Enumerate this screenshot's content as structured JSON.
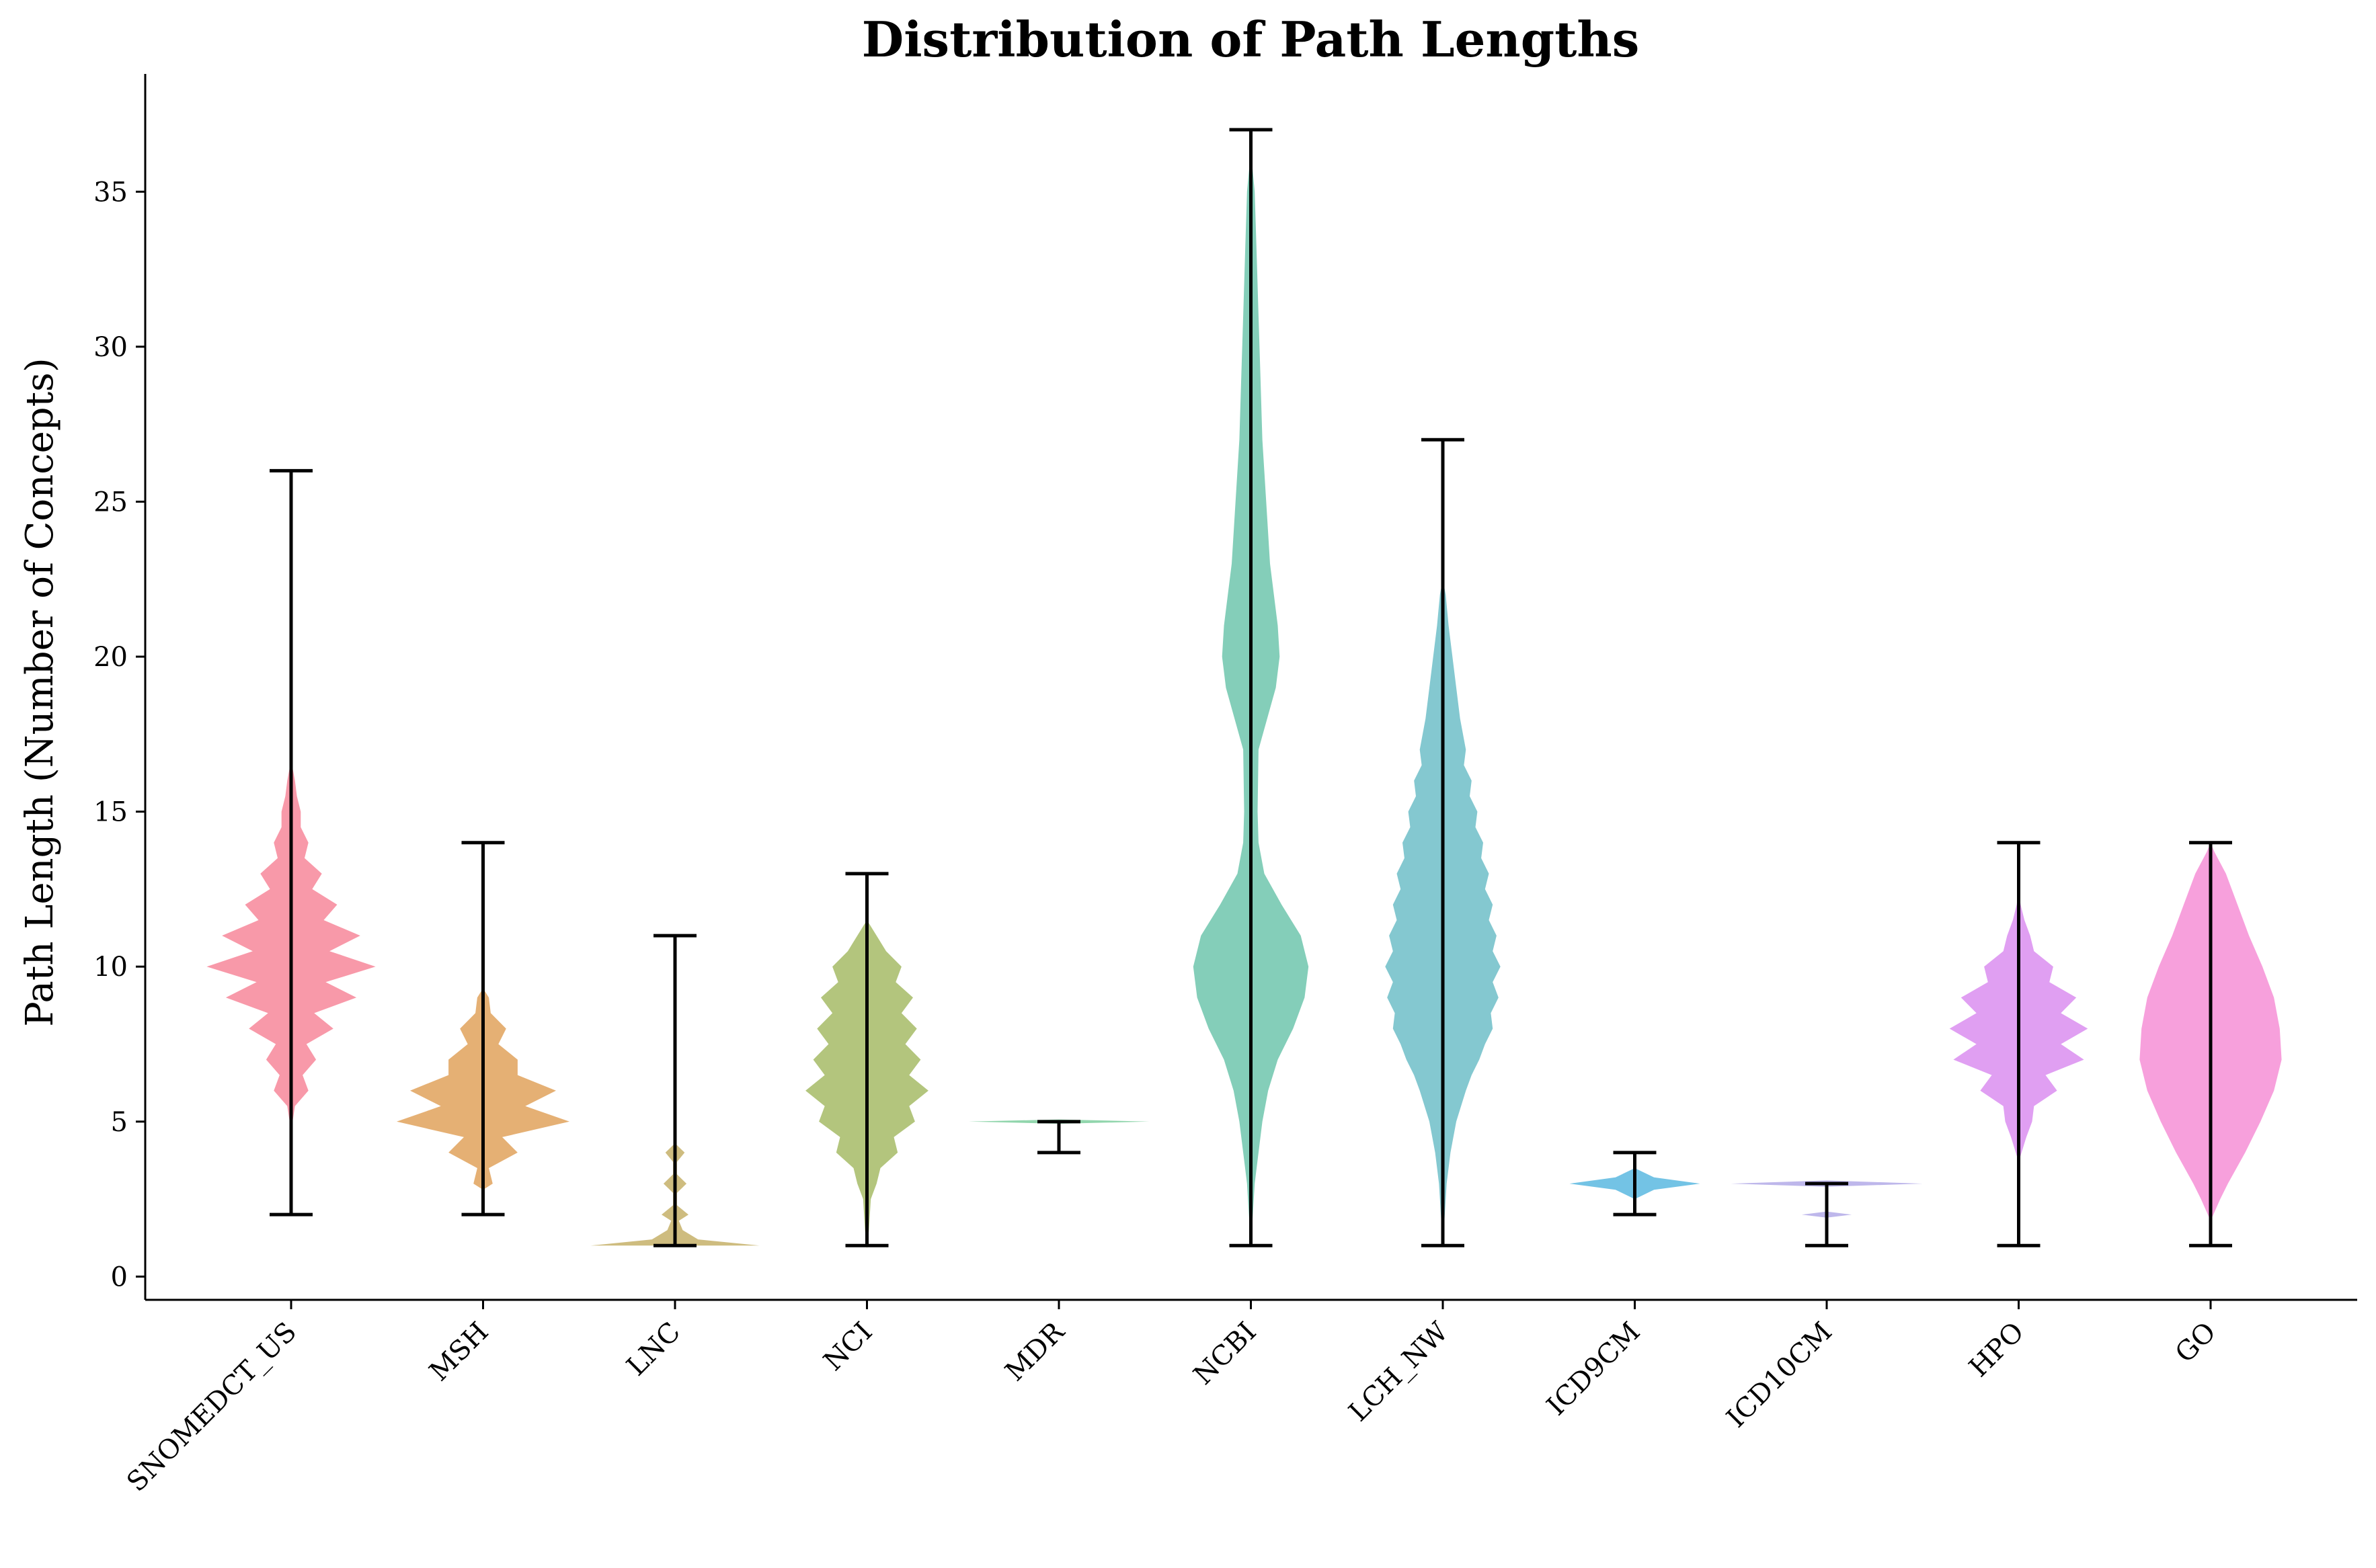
{
  "chart_data": {
    "type": "violin",
    "title": "Distribution of Path Lengths",
    "xlabel": "",
    "ylabel": "Path Length (Number of Concepts)",
    "ylim": [
      -0.75,
      38.8
    ],
    "yticks": [
      0,
      5,
      10,
      15,
      20,
      25,
      30,
      35
    ],
    "grid": false,
    "categories": [
      "SNOMEDCT_US",
      "MSH",
      "LNC",
      "NCI",
      "MDR",
      "NCBI",
      "LCH_NW",
      "ICD9CM",
      "ICD10CM",
      "HPO",
      "GO"
    ],
    "series": [
      {
        "name": "SNOMEDCT_US",
        "color": "#f7879a",
        "min": 2,
        "max": 26,
        "density": [
          [
            4.7,
            0
          ],
          [
            5.5,
            0.02
          ],
          [
            6,
            0.09
          ],
          [
            6.5,
            0.06
          ],
          [
            7,
            0.13
          ],
          [
            7.5,
            0.08
          ],
          [
            8,
            0.22
          ],
          [
            8.5,
            0.12
          ],
          [
            9,
            0.34
          ],
          [
            9.5,
            0.18
          ],
          [
            10,
            0.44
          ],
          [
            10.5,
            0.2
          ],
          [
            11,
            0.36
          ],
          [
            11.5,
            0.17
          ],
          [
            12,
            0.24
          ],
          [
            12.5,
            0.11
          ],
          [
            13,
            0.16
          ],
          [
            13.5,
            0.07
          ],
          [
            14,
            0.09
          ],
          [
            14.5,
            0.05
          ],
          [
            15,
            0.05
          ],
          [
            15.5,
            0.03
          ],
          [
            16,
            0.02
          ],
          [
            16.5,
            0.005
          ],
          [
            17,
            0
          ]
        ]
      },
      {
        "name": "MSH",
        "color": "#e0a25c",
        "min": 2,
        "max": 14,
        "density": [
          [
            2.8,
            0
          ],
          [
            3,
            0.05
          ],
          [
            3.5,
            0.03
          ],
          [
            4,
            0.18
          ],
          [
            4.5,
            0.1
          ],
          [
            5,
            0.45
          ],
          [
            5.5,
            0.22
          ],
          [
            6,
            0.38
          ],
          [
            6.5,
            0.18
          ],
          [
            7,
            0.18
          ],
          [
            7.5,
            0.08
          ],
          [
            8,
            0.12
          ],
          [
            8.5,
            0.04
          ],
          [
            9,
            0.03
          ],
          [
            9.3,
            0
          ]
        ]
      },
      {
        "name": "LNC",
        "color": "#c5b068",
        "min": 1,
        "max": 11,
        "density": [
          [
            1,
            0.44
          ],
          [
            1.2,
            0.12
          ],
          [
            1.5,
            0.04
          ],
          [
            1.8,
            0.02
          ],
          [
            2,
            0.07
          ],
          [
            2.3,
            0.01
          ],
          [
            2.7,
            0.01
          ],
          [
            3,
            0.06
          ],
          [
            3.3,
            0.01
          ],
          [
            3.7,
            0.01
          ],
          [
            4,
            0.05
          ],
          [
            4.3,
            0
          ]
        ]
      },
      {
        "name": "NCI",
        "color": "#a6bb66",
        "min": 1,
        "max": 13,
        "density": [
          [
            0.9,
            0
          ],
          [
            1.5,
            0.01
          ],
          [
            2.5,
            0.02
          ],
          [
            3,
            0.05
          ],
          [
            3.5,
            0.07
          ],
          [
            4,
            0.16
          ],
          [
            4.5,
            0.14
          ],
          [
            5,
            0.25
          ],
          [
            5.5,
            0.22
          ],
          [
            6,
            0.32
          ],
          [
            6.5,
            0.22
          ],
          [
            7,
            0.28
          ],
          [
            7.5,
            0.2
          ],
          [
            8,
            0.26
          ],
          [
            8.5,
            0.18
          ],
          [
            9,
            0.24
          ],
          [
            9.5,
            0.15
          ],
          [
            10,
            0.18
          ],
          [
            10.5,
            0.1
          ],
          [
            11,
            0.05
          ],
          [
            11.5,
            0
          ]
        ]
      },
      {
        "name": "MDR",
        "color": "#7fcf9f",
        "min": 4,
        "max": 5,
        "density": [
          [
            4.93,
            0
          ],
          [
            5,
            0.47
          ],
          [
            5.07,
            0
          ]
        ]
      },
      {
        "name": "NCBI",
        "color": "#6ec5ad",
        "min": 1,
        "max": 37,
        "density": [
          [
            1,
            0
          ],
          [
            2,
            0.01
          ],
          [
            3,
            0.02
          ],
          [
            4,
            0.04
          ],
          [
            5,
            0.06
          ],
          [
            6,
            0.09
          ],
          [
            7,
            0.14
          ],
          [
            8,
            0.22
          ],
          [
            9,
            0.28
          ],
          [
            10,
            0.3
          ],
          [
            11,
            0.26
          ],
          [
            12,
            0.16
          ],
          [
            13,
            0.07
          ],
          [
            14,
            0.04
          ],
          [
            15,
            0.035
          ],
          [
            17,
            0.04
          ],
          [
            19,
            0.13
          ],
          [
            20,
            0.15
          ],
          [
            21,
            0.14
          ],
          [
            23,
            0.1
          ],
          [
            25,
            0.08
          ],
          [
            27,
            0.06
          ],
          [
            29,
            0.05
          ],
          [
            31,
            0.04
          ],
          [
            33,
            0.03
          ],
          [
            35,
            0.02
          ],
          [
            36,
            0.005
          ],
          [
            37,
            0
          ]
        ]
      },
      {
        "name": "LCH_NW",
        "color": "#6fbec8",
        "min": 1,
        "max": 27,
        "density": [
          [
            1,
            0
          ],
          [
            2,
            0.01
          ],
          [
            3,
            0.02
          ],
          [
            4,
            0.04
          ],
          [
            5,
            0.07
          ],
          [
            6,
            0.12
          ],
          [
            6.5,
            0.15
          ],
          [
            7,
            0.19
          ],
          [
            7.5,
            0.22
          ],
          [
            8,
            0.26
          ],
          [
            8.5,
            0.25
          ],
          [
            9,
            0.29
          ],
          [
            9.5,
            0.26
          ],
          [
            10,
            0.3
          ],
          [
            10.5,
            0.26
          ],
          [
            11,
            0.28
          ],
          [
            11.5,
            0.24
          ],
          [
            12,
            0.26
          ],
          [
            12.5,
            0.22
          ],
          [
            13,
            0.24
          ],
          [
            13.5,
            0.2
          ],
          [
            14,
            0.21
          ],
          [
            14.5,
            0.17
          ],
          [
            15,
            0.18
          ],
          [
            15.5,
            0.14
          ],
          [
            16,
            0.15
          ],
          [
            16.5,
            0.11
          ],
          [
            17,
            0.12
          ],
          [
            18,
            0.09
          ],
          [
            19,
            0.07
          ],
          [
            20,
            0.05
          ],
          [
            21,
            0.03
          ],
          [
            22,
            0.015
          ],
          [
            22.5,
            0
          ]
        ]
      },
      {
        "name": "ICD9CM",
        "color": "#5ab8e0",
        "min": 2,
        "max": 4,
        "density": [
          [
            2.5,
            0
          ],
          [
            2.8,
            0.1
          ],
          [
            3,
            0.34
          ],
          [
            3.2,
            0.1
          ],
          [
            3.5,
            0
          ]
        ]
      },
      {
        "name": "ICD10CM",
        "color": "#b3aae8",
        "min": 1,
        "max": 3,
        "density": [
          [
            1.9,
            0
          ],
          [
            2,
            0.13
          ],
          [
            2.1,
            0
          ],
          [
            2.9,
            0
          ],
          [
            3,
            0.5
          ],
          [
            3.1,
            0
          ]
        ]
      },
      {
        "name": "HPO",
        "color": "#da8ef0",
        "min": 1,
        "max": 14,
        "density": [
          [
            3.7,
            0
          ],
          [
            4.5,
            0.04
          ],
          [
            5,
            0.07
          ],
          [
            5.5,
            0.08
          ],
          [
            6,
            0.2
          ],
          [
            6.5,
            0.14
          ],
          [
            7,
            0.34
          ],
          [
            7.5,
            0.22
          ],
          [
            8,
            0.36
          ],
          [
            8.5,
            0.22
          ],
          [
            9,
            0.3
          ],
          [
            9.5,
            0.16
          ],
          [
            10,
            0.18
          ],
          [
            10.5,
            0.08
          ],
          [
            11,
            0.06
          ],
          [
            11.5,
            0.03
          ],
          [
            12,
            0.01
          ],
          [
            12.5,
            0
          ]
        ]
      },
      {
        "name": "GO",
        "color": "#f68fd6",
        "min": 1,
        "max": 14,
        "density": [
          [
            1.8,
            0
          ],
          [
            2.5,
            0.05
          ],
          [
            3,
            0.09
          ],
          [
            4,
            0.18
          ],
          [
            5,
            0.26
          ],
          [
            6,
            0.33
          ],
          [
            7,
            0.37
          ],
          [
            8,
            0.36
          ],
          [
            9,
            0.33
          ],
          [
            10,
            0.27
          ],
          [
            11,
            0.2
          ],
          [
            12,
            0.14
          ],
          [
            13,
            0.08
          ],
          [
            13.7,
            0.02
          ],
          [
            14,
            0
          ]
        ]
      }
    ]
  }
}
